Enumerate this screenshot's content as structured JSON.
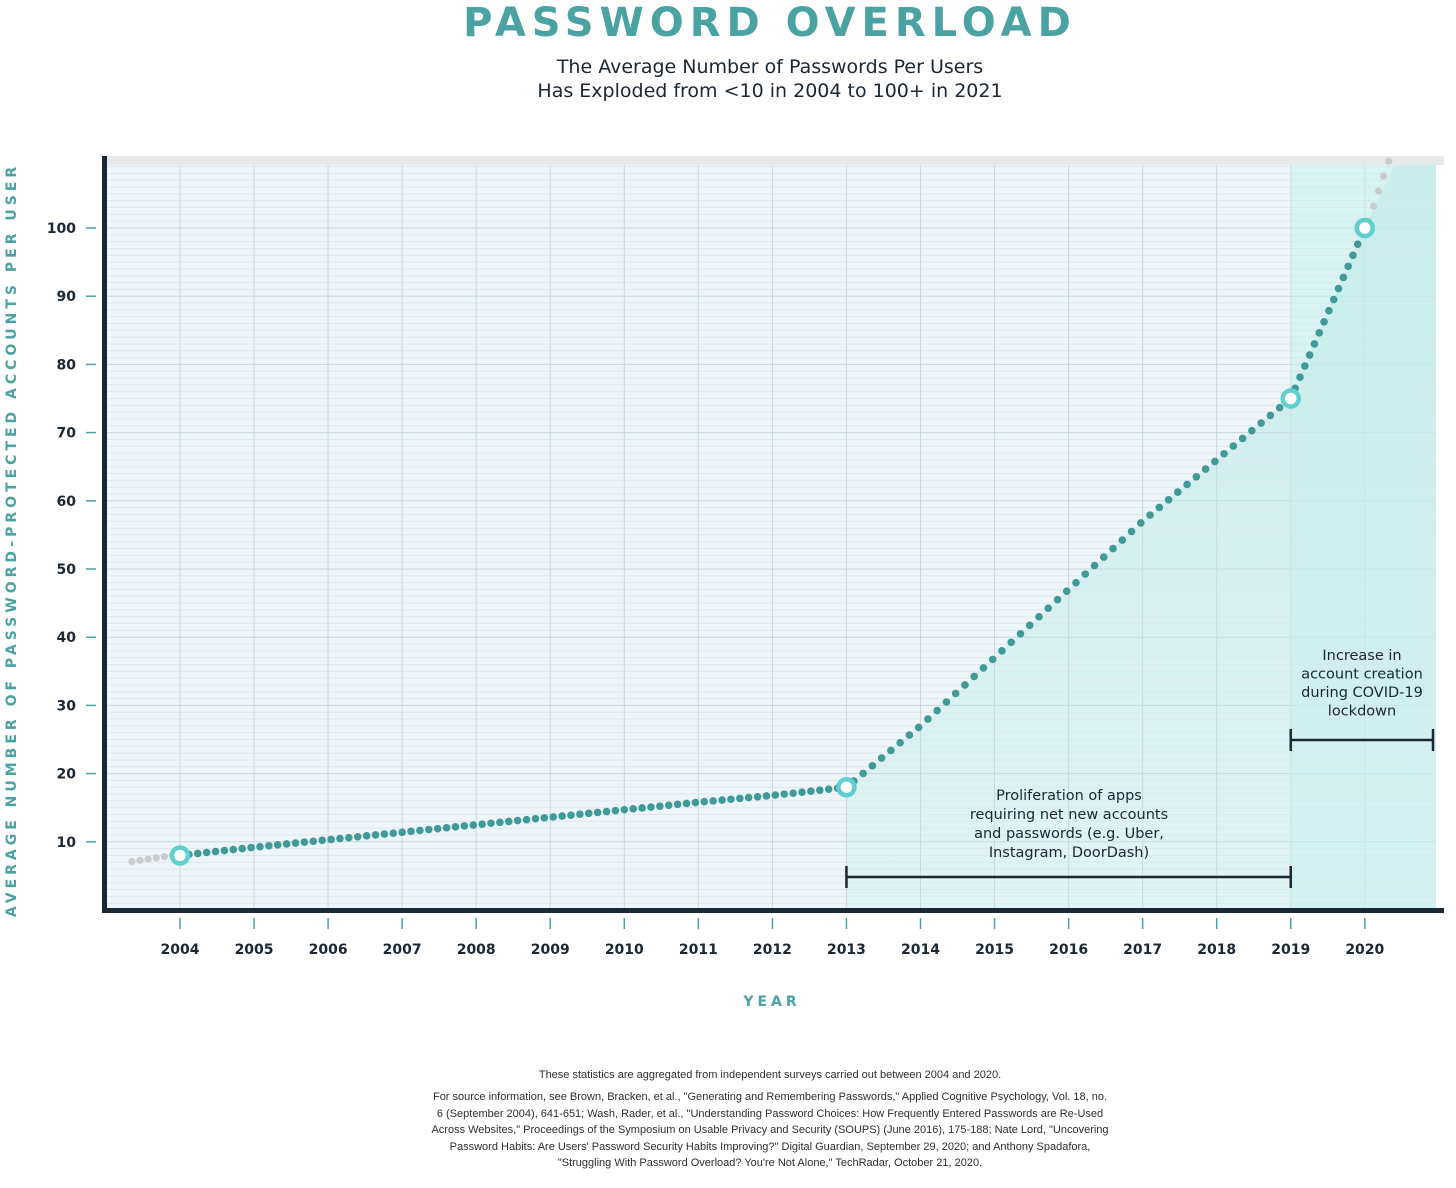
{
  "header": {
    "title": "PASSWORD OVERLOAD",
    "subtitle_line1": "The Average Number of Passwords Per Users",
    "subtitle_line2": "Has Exploded from <10 in 2004 to 100+ in 2021"
  },
  "colors": {
    "accent": "#4aa3a2",
    "marker_ring": "#5fd0cf",
    "dots": "#3f9a98",
    "faded_dots": "#c9cccf",
    "axis": "#1b2733",
    "plot_bg": "#eef6f9",
    "highlight_fill": "#cdeeed"
  },
  "chart_data": {
    "type": "line",
    "xlabel": "YEAR",
    "ylabel": "AVERAGE NUMBER OF PASSWORD-PROTECTED ACCOUNTS PER USER",
    "x_ticks": [
      "2004",
      "2005",
      "2006",
      "2007",
      "2008",
      "2009",
      "2010",
      "2011",
      "2012",
      "2013",
      "2014",
      "2015",
      "2016",
      "2017",
      "2018",
      "2019",
      "2020"
    ],
    "y_ticks": [
      10,
      20,
      30,
      40,
      50,
      60,
      70,
      80,
      90,
      100
    ],
    "xlim": [
      2003,
      2021
    ],
    "ylim": [
      0,
      110
    ],
    "series": [
      {
        "values": [
          {
            "x": 2004,
            "y": 8
          },
          {
            "x": 2005,
            "y": 9.2
          },
          {
            "x": 2006,
            "y": 10.3
          },
          {
            "x": 2007,
            "y": 11.4
          },
          {
            "x": 2008,
            "y": 12.5
          },
          {
            "x": 2009,
            "y": 13.6
          },
          {
            "x": 2010,
            "y": 14.7
          },
          {
            "x": 2011,
            "y": 15.8
          },
          {
            "x": 2012,
            "y": 16.8
          },
          {
            "x": 2013,
            "y": 18
          },
          {
            "x": 2014,
            "y": 27
          },
          {
            "x": 2015,
            "y": 37
          },
          {
            "x": 2016,
            "y": 47
          },
          {
            "x": 2017,
            "y": 57
          },
          {
            "x": 2018,
            "y": 66
          },
          {
            "x": 2019,
            "y": 75
          },
          {
            "x": 2020,
            "y": 100
          }
        ]
      }
    ],
    "highlighted_points": [
      {
        "x": 2004,
        "y": 8
      },
      {
        "x": 2013,
        "y": 18
      },
      {
        "x": 2019,
        "y": 75
      },
      {
        "x": 2020,
        "y": 100
      }
    ],
    "annotations": [
      {
        "text_lines": [
          "Proliferation of apps",
          "requiring net new accounts",
          "and passwords (e.g. Uber,",
          "Instagram, DoorDash)"
        ],
        "x_range": [
          2013,
          2019
        ]
      },
      {
        "text_lines": [
          "Increase in",
          "account creation",
          "during COVID-19",
          "lockdown"
        ],
        "x_range": [
          2019,
          2021
        ]
      }
    ],
    "grid": true
  },
  "footnotes": {
    "line1": "These statistics are aggregated from independent surveys carried out between 2004 and 2020.",
    "sources": [
      "For source information, see Brown, Bracken, et al., \"Generating and Remembering Passwords,\" Applied Cognitive Psychology, Vol. 18, no.",
      "6 (September 2004), 641-651; Wash, Rader, et al., \"Understanding Password Choices: How Frequently Entered Passwords are Re-Used",
      "Across Websites,\" Proceedings of the Symposium on Usable Privacy and Security (SOUPS) (June 2016), 175-188; Nate Lord, \"Uncovering",
      "Password Habits: Are Users' Password Security Habits Improving?\" Digital Guardian, September 29, 2020; and Anthony Spadafora,",
      "\"Struggling With Password Overload? You're Not Alone,\" TechRadar, October 21, 2020."
    ]
  }
}
